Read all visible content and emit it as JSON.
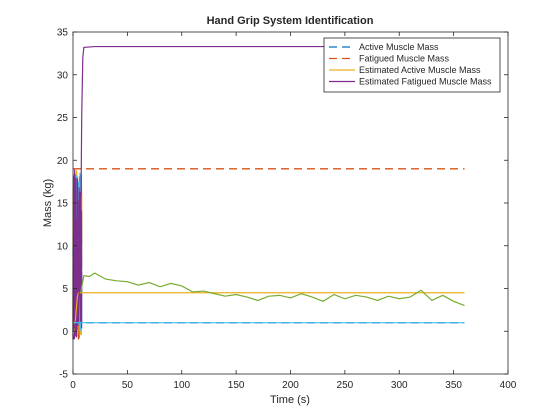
{
  "chart_data": {
    "type": "line",
    "title": "Hand Grip System Identification",
    "xlabel": "Time (s)",
    "ylabel": "Mass (kg)",
    "xlim": [
      0,
      400
    ],
    "ylim": [
      -5,
      35
    ],
    "xticks": [
      0,
      50,
      100,
      150,
      200,
      250,
      300,
      350,
      400
    ],
    "yticks": [
      -5,
      0,
      5,
      10,
      15,
      20,
      25,
      30,
      35
    ],
    "grid": false,
    "legend_position": "top-right",
    "legend": [
      "Active Muscle Mass",
      "Fatigued Muscle Mass",
      "Estimated Active Muscle Mass",
      "Estimated Fatigued Muscle Mass"
    ],
    "series": [
      {
        "name": "Active Muscle Mass",
        "style": "dashed",
        "color": "#0072BD",
        "x": [
          0,
          5,
          10,
          360
        ],
        "y": [
          1,
          1,
          1,
          1
        ]
      },
      {
        "name": "Fatigued Muscle Mass",
        "style": "dashed",
        "color": "#D95319",
        "x": [
          0,
          5,
          10,
          360
        ],
        "y": [
          19,
          19,
          19,
          19
        ]
      },
      {
        "name": "Estimated Active Muscle Mass",
        "style": "solid",
        "color": "#EDB120",
        "x": [
          0,
          2,
          4,
          5,
          6,
          8,
          10,
          360
        ],
        "y": [
          -0.5,
          1,
          4,
          4.5,
          4.5,
          4.5,
          4.5,
          4.5
        ]
      },
      {
        "name": "Estimated Fatigued Muscle Mass",
        "style": "solid",
        "color": "#7E2F8E",
        "x": [
          0,
          5,
          7,
          8,
          9,
          10,
          20,
          360
        ],
        "y": [
          0,
          2,
          10,
          25,
          32,
          33.2,
          33.3,
          33.3
        ]
      },
      {
        "name": "",
        "style": "solid",
        "color": "#4DBEEE",
        "x": [
          0,
          10,
          360
        ],
        "y": [
          1,
          1,
          1
        ]
      },
      {
        "name": "",
        "style": "solid",
        "color": "#77AC30",
        "x": [
          7,
          10,
          15,
          20,
          30,
          40,
          50,
          60,
          70,
          80,
          90,
          100,
          110,
          120,
          130,
          140,
          150,
          160,
          170,
          180,
          190,
          200,
          210,
          220,
          230,
          240,
          250,
          260,
          270,
          280,
          290,
          300,
          310,
          320,
          330,
          340,
          350,
          360
        ],
        "y": [
          4.5,
          6.5,
          6.4,
          6.8,
          6.1,
          5.9,
          5.8,
          5.4,
          5.7,
          5.2,
          5.6,
          5.3,
          4.6,
          4.7,
          4.4,
          4.1,
          4.3,
          4.0,
          3.6,
          4.1,
          4.2,
          3.9,
          4.4,
          4.0,
          3.5,
          4.3,
          3.8,
          4.2,
          4.0,
          3.6,
          4.1,
          3.8,
          4.0,
          4.8,
          3.6,
          4.2,
          3.5,
          3.0
        ]
      }
    ],
    "transient": {
      "x_end": 8,
      "colors": [
        "#0072BD",
        "#D95319",
        "#EDB120",
        "#4DBEEE",
        "#7E2F8E"
      ],
      "ymin": -1,
      "ymax": 19
    }
  }
}
